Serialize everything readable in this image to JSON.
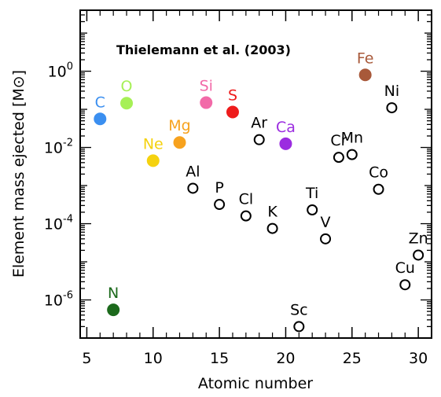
{
  "chart_data": {
    "type": "scatter",
    "title": "",
    "annotation": "Thielemann et al. (2003)",
    "xlabel": "Atomic number",
    "ylabel": "Element mass ejected [M⊙]",
    "xlim": [
      4.5,
      31.0
    ],
    "ylim_log10": [
      -7.0,
      1.6
    ],
    "yscale": "log",
    "x_ticks": [
      5,
      10,
      15,
      20,
      25,
      30
    ],
    "x_tick_labels": [
      "5",
      "10",
      "15",
      "20",
      "25",
      "30"
    ],
    "y_ticks_log10": [
      -6,
      -4,
      -2,
      0
    ],
    "y_tick_labels": [
      {
        "base": "10",
        "exp": "-6"
      },
      {
        "base": "10",
        "exp": "-4"
      },
      {
        "base": "10",
        "exp": "-2"
      },
      {
        "base": "10",
        "exp": "0"
      }
    ],
    "grid": false,
    "points": [
      {
        "label": "C",
        "x": 6,
        "y": 0.056,
        "filled": true,
        "color": "#3b8ff0"
      },
      {
        "label": "N",
        "x": 7,
        "y": 5.5e-07,
        "filled": true,
        "color": "#1c6a1c"
      },
      {
        "label": "O",
        "x": 8,
        "y": 0.145,
        "filled": true,
        "color": "#a6f056"
      },
      {
        "label": "Ne",
        "x": 10,
        "y": 0.0045,
        "filled": true,
        "color": "#f5d20f"
      },
      {
        "label": "Al",
        "x": 13,
        "y": 0.00085,
        "filled": false,
        "color": "#000000"
      },
      {
        "label": "Mg",
        "x": 12,
        "y": 0.0135,
        "filled": true,
        "color": "#f7a21e"
      },
      {
        "label": "Si",
        "x": 14,
        "y": 0.15,
        "filled": true,
        "color": "#f26aa8"
      },
      {
        "label": "P",
        "x": 15,
        "y": 0.00032,
        "filled": false,
        "color": "#000000"
      },
      {
        "label": "S",
        "x": 16,
        "y": 0.085,
        "filled": true,
        "color": "#ee1c1c"
      },
      {
        "label": "Cl",
        "x": 17,
        "y": 0.00016,
        "filled": false,
        "color": "#000000"
      },
      {
        "label": "Ar",
        "x": 18,
        "y": 0.016,
        "filled": false,
        "color": "#000000"
      },
      {
        "label": "K",
        "x": 19,
        "y": 7.5e-05,
        "filled": false,
        "color": "#000000"
      },
      {
        "label": "Ca",
        "x": 20,
        "y": 0.0125,
        "filled": true,
        "color": "#9b2ce0"
      },
      {
        "label": "Sc",
        "x": 21,
        "y": 2e-07,
        "filled": false,
        "color": "#000000"
      },
      {
        "label": "Ti",
        "x": 22,
        "y": 0.00023,
        "filled": false,
        "color": "#000000"
      },
      {
        "label": "V",
        "x": 23,
        "y": 4e-05,
        "filled": false,
        "color": "#000000"
      },
      {
        "label": "Cr",
        "x": 24,
        "y": 0.0055,
        "filled": false,
        "color": "#000000"
      },
      {
        "label": "Mn",
        "x": 25,
        "y": 0.0065,
        "filled": false,
        "color": "#000000"
      },
      {
        "label": "Fe",
        "x": 26,
        "y": 0.8,
        "filled": true,
        "color": "#a8593a"
      },
      {
        "label": "Co",
        "x": 27,
        "y": 0.0008,
        "filled": false,
        "color": "#000000"
      },
      {
        "label": "Ni",
        "x": 28,
        "y": 0.11,
        "filled": false,
        "color": "#000000"
      },
      {
        "label": "Cu",
        "x": 29,
        "y": 2.5e-06,
        "filled": false,
        "color": "#000000"
      },
      {
        "label": "Zn",
        "x": 30,
        "y": 1.5e-05,
        "filled": false,
        "color": "#000000"
      }
    ]
  }
}
